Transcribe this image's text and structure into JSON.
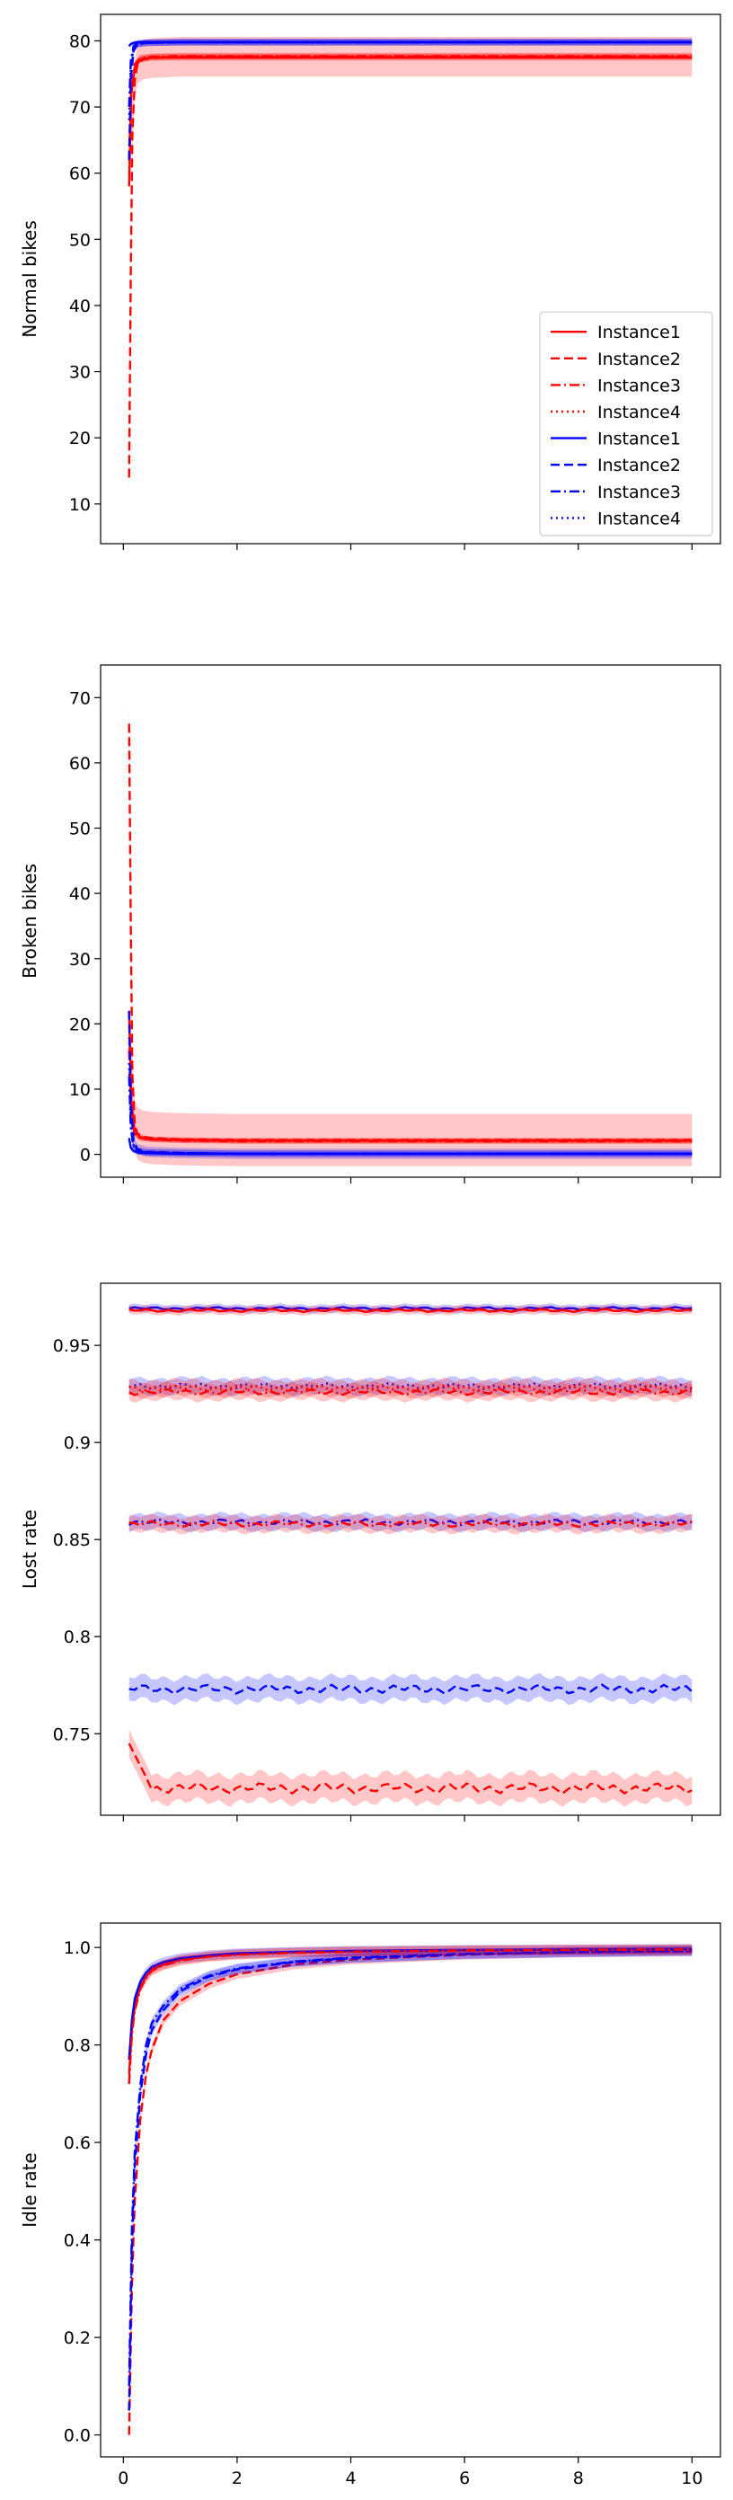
{
  "chart_data": [
    {
      "type": "line",
      "ylabel": "Normal bikes",
      "xlim": [
        -0.4,
        10.5
      ],
      "ylim": [
        4,
        84
      ],
      "yticks": [
        10,
        20,
        30,
        40,
        50,
        60,
        70,
        80
      ],
      "xticks": [
        0,
        2,
        4,
        6,
        8,
        10
      ],
      "show_xtick_labels": false,
      "legend": {
        "position": "lower-right",
        "entries": [
          {
            "label": "Instance1",
            "color": "#ff0000",
            "style": "solid"
          },
          {
            "label": "Instance2",
            "color": "#ff0000",
            "style": "dashed"
          },
          {
            "label": "Instance3",
            "color": "#ff0000",
            "style": "dashdot"
          },
          {
            "label": "Instance4",
            "color": "#ff0000",
            "style": "dotted"
          },
          {
            "label": "Instance1",
            "color": "#0000ff",
            "style": "solid"
          },
          {
            "label": "Instance2",
            "color": "#0000ff",
            "style": "dashed"
          },
          {
            "label": "Instance3",
            "color": "#0000ff",
            "style": "dashdot"
          },
          {
            "label": "Instance4",
            "color": "#0000ff",
            "style": "dotted"
          }
        ]
      },
      "series": [
        {
          "color": "#ff0000",
          "style": "dashed",
          "band": 3.0,
          "x": [
            0.1,
            0.13,
            0.16,
            0.2,
            0.25,
            0.35,
            0.5,
            1,
            2,
            4,
            6,
            8,
            10
          ],
          "y": [
            14,
            45,
            66,
            74,
            76.5,
            77.2,
            77.4,
            77.6,
            77.6,
            77.6,
            77.6,
            77.6,
            77.6
          ]
        },
        {
          "color": "#ff0000",
          "style": "solid",
          "band": 0.5,
          "x": [
            0.1,
            0.14,
            0.2,
            0.3,
            0.5,
            1,
            2,
            4,
            6,
            8,
            10
          ],
          "y": [
            58,
            72,
            76,
            77.2,
            77.5,
            77.5,
            77.5,
            77.5,
            77.5,
            77.5,
            77.5
          ]
        },
        {
          "color": "#ff0000",
          "style": "dashdot",
          "band": 0.5,
          "x": [
            0.1,
            0.14,
            0.2,
            0.3,
            0.5,
            1,
            2,
            4,
            6,
            8,
            10
          ],
          "y": [
            62,
            73,
            76.5,
            77.4,
            77.6,
            77.7,
            77.7,
            77.7,
            77.7,
            77.7,
            77.7
          ]
        },
        {
          "color": "#ff0000",
          "style": "dotted",
          "band": 0.5,
          "x": [
            0.1,
            0.14,
            0.2,
            0.3,
            0.5,
            1,
            2,
            4,
            6,
            8,
            10
          ],
          "y": [
            60,
            72,
            76.2,
            77.3,
            77.5,
            77.6,
            77.6,
            77.6,
            77.6,
            77.6,
            77.6
          ]
        },
        {
          "color": "#0000ff",
          "style": "solid",
          "band": 0.3,
          "x": [
            0.1,
            0.13,
            0.18,
            0.25,
            0.4,
            1,
            2,
            4,
            6,
            8,
            10
          ],
          "y": [
            79.2,
            79.5,
            79.7,
            79.8,
            79.8,
            79.8,
            79.8,
            79.8,
            79.8,
            79.8,
            79.8
          ]
        },
        {
          "color": "#0000ff",
          "style": "dashed",
          "band": 0.5,
          "x": [
            0.1,
            0.13,
            0.18,
            0.25,
            0.4,
            1,
            2,
            4,
            6,
            8,
            10
          ],
          "y": [
            62,
            74,
            78.5,
            79.5,
            79.7,
            79.8,
            79.8,
            79.8,
            79.8,
            79.8,
            79.8
          ]
        },
        {
          "color": "#0000ff",
          "style": "dashdot",
          "band": 0.5,
          "x": [
            0.1,
            0.13,
            0.18,
            0.25,
            0.4,
            1,
            2,
            4,
            6,
            8,
            10
          ],
          "y": [
            70,
            77,
            79.2,
            79.6,
            79.7,
            79.8,
            79.8,
            79.8,
            79.8,
            79.8,
            79.8
          ]
        },
        {
          "color": "#0000ff",
          "style": "dotted",
          "band": 0.5,
          "x": [
            0.1,
            0.13,
            0.18,
            0.25,
            0.4,
            1,
            2,
            4,
            6,
            8,
            10
          ],
          "y": [
            68,
            76,
            79,
            79.5,
            79.7,
            79.8,
            79.8,
            79.8,
            79.8,
            79.8,
            79.8
          ]
        }
      ]
    },
    {
      "type": "line",
      "ylabel": "Broken bikes",
      "xlim": [
        -0.4,
        10.5
      ],
      "ylim": [
        -3.5,
        75
      ],
      "yticks": [
        0,
        10,
        20,
        30,
        40,
        50,
        60,
        70
      ],
      "xticks": [
        0,
        2,
        4,
        6,
        8,
        10
      ],
      "show_xtick_labels": false,
      "series": [
        {
          "color": "#ff0000",
          "style": "dashed",
          "band": 4.0,
          "x": [
            0.1,
            0.13,
            0.16,
            0.2,
            0.25,
            0.35,
            0.5,
            1,
            2,
            4,
            6,
            8,
            10
          ],
          "y": [
            66,
            35,
            12,
            4.5,
            3.2,
            2.7,
            2.5,
            2.3,
            2.2,
            2.2,
            2.2,
            2.2,
            2.2
          ]
        },
        {
          "color": "#ff0000",
          "style": "solid",
          "band": 0.4,
          "x": [
            0.1,
            0.14,
            0.2,
            0.3,
            0.5,
            1,
            2,
            4,
            6,
            8,
            10
          ],
          "y": [
            22,
            8,
            3.5,
            2.6,
            2.3,
            2.2,
            2.1,
            2.1,
            2.1,
            2.1,
            2.1
          ]
        },
        {
          "color": "#ff0000",
          "style": "dashdot",
          "band": 0.4,
          "x": [
            0.1,
            0.14,
            0.2,
            0.3,
            0.5,
            1,
            2,
            4,
            6,
            8,
            10
          ],
          "y": [
            16,
            6,
            3,
            2.5,
            2.3,
            2.1,
            2.0,
            2.0,
            2.0,
            2.0,
            2.0
          ]
        },
        {
          "color": "#ff0000",
          "style": "dotted",
          "band": 0.4,
          "x": [
            0.1,
            0.14,
            0.2,
            0.3,
            0.5,
            1,
            2,
            4,
            6,
            8,
            10
          ],
          "y": [
            18,
            7,
            3.2,
            2.5,
            2.3,
            2.2,
            2.1,
            2.1,
            2.1,
            2.1,
            2.1
          ]
        },
        {
          "color": "#0000ff",
          "style": "solid",
          "band": 0.3,
          "x": [
            0.1,
            0.13,
            0.18,
            0.25,
            0.4,
            1,
            2,
            4,
            6,
            8,
            10
          ],
          "y": [
            2.5,
            1.0,
            0.5,
            0.3,
            0.2,
            0.1,
            0.1,
            0.1,
            0.1,
            0.1,
            0.1
          ]
        },
        {
          "color": "#0000ff",
          "style": "dashed",
          "band": 0.8,
          "x": [
            0.1,
            0.13,
            0.18,
            0.25,
            0.4,
            1,
            2,
            4,
            6,
            8,
            10
          ],
          "y": [
            22,
            8,
            2,
            0.8,
            0.4,
            0.2,
            0.1,
            0.1,
            0.1,
            0.1,
            0.1
          ]
        },
        {
          "color": "#0000ff",
          "style": "dashdot",
          "band": 0.5,
          "x": [
            0.1,
            0.13,
            0.18,
            0.25,
            0.4,
            1,
            2,
            4,
            6,
            8,
            10
          ],
          "y": [
            12,
            4,
            1,
            0.5,
            0.3,
            0.2,
            0.1,
            0.1,
            0.1,
            0.1,
            0.1
          ]
        },
        {
          "color": "#0000ff",
          "style": "dotted",
          "band": 0.5,
          "x": [
            0.1,
            0.13,
            0.18,
            0.25,
            0.4,
            1,
            2,
            4,
            6,
            8,
            10
          ],
          "y": [
            14,
            5,
            1.2,
            0.6,
            0.3,
            0.2,
            0.1,
            0.1,
            0.1,
            0.1,
            0.1
          ]
        }
      ]
    },
    {
      "type": "line",
      "ylabel": "Lost rate",
      "xlim": [
        -0.4,
        10.5
      ],
      "ylim": [
        0.708,
        0.982
      ],
      "yticks": [
        0.75,
        0.8,
        0.85,
        0.9,
        0.95
      ],
      "xticks": [
        0,
        2,
        4,
        6,
        8,
        10
      ],
      "show_xtick_labels": false,
      "series": [
        {
          "color": "#0000ff",
          "style": "solid",
          "level": 0.969,
          "band": 0.002
        },
        {
          "color": "#ff0000",
          "style": "solid",
          "level": 0.968,
          "band": 0.002
        },
        {
          "color": "#0000ff",
          "style": "dotted",
          "level": 0.929,
          "band": 0.004
        },
        {
          "color": "#ff0000",
          "style": "dotted",
          "level": 0.928,
          "band": 0.004
        },
        {
          "color": "#ff0000",
          "style": "dashdot",
          "level": 0.926,
          "band": 0.004
        },
        {
          "color": "#0000ff",
          "style": "dashdot",
          "level": 0.859,
          "band": 0.004
        },
        {
          "color": "#ff0000",
          "style": "dashdot",
          "level": 0.858,
          "band": 0.004
        },
        {
          "color": "#0000ff",
          "style": "dashed",
          "level": 0.773,
          "band": 0.006
        },
        {
          "color": "#ff0000",
          "style": "dashed",
          "level": 0.722,
          "band": 0.007,
          "start": 0.745
        }
      ]
    },
    {
      "type": "line",
      "ylabel": "Idle rate",
      "xlim": [
        -0.4,
        10.5
      ],
      "ylim": [
        -0.045,
        1.05
      ],
      "yticks": [
        0.0,
        0.2,
        0.4,
        0.6,
        0.8,
        1.0
      ],
      "ytick_labels": [
        "0.0",
        "0.2",
        "0.4",
        "0.6",
        "0.8",
        "1.0"
      ],
      "xticks": [
        0,
        2,
        4,
        6,
        8,
        10
      ],
      "xtick_labels": [
        "0",
        "2",
        "4",
        "6",
        "8",
        "10"
      ],
      "show_xtick_labels": true,
      "series": [
        {
          "color": "#ff0000",
          "style": "dashed",
          "band": 0.01,
          "x": [
            0.1,
            0.15,
            0.2,
            0.3,
            0.4,
            0.5,
            0.7,
            1,
            1.5,
            2,
            3,
            4,
            6,
            8,
            10
          ],
          "y": [
            0.0,
            0.3,
            0.48,
            0.65,
            0.74,
            0.79,
            0.85,
            0.89,
            0.925,
            0.945,
            0.965,
            0.975,
            0.985,
            0.99,
            0.992
          ]
        },
        {
          "color": "#0000ff",
          "style": "dashed",
          "band": 0.01,
          "x": [
            0.1,
            0.15,
            0.2,
            0.3,
            0.4,
            0.5,
            0.7,
            1,
            1.5,
            2,
            3,
            4,
            6,
            8,
            10
          ],
          "y": [
            0.05,
            0.38,
            0.55,
            0.7,
            0.78,
            0.83,
            0.87,
            0.91,
            0.94,
            0.955,
            0.97,
            0.978,
            0.986,
            0.99,
            0.993
          ]
        },
        {
          "color": "#ff0000",
          "style": "solid",
          "band": 0.01,
          "x": [
            0.1,
            0.15,
            0.2,
            0.3,
            0.4,
            0.5,
            0.7,
            1,
            1.5,
            2,
            3,
            4,
            6,
            8,
            10
          ],
          "y": [
            0.74,
            0.83,
            0.88,
            0.92,
            0.94,
            0.955,
            0.965,
            0.975,
            0.982,
            0.986,
            0.99,
            0.992,
            0.994,
            0.995,
            0.996
          ]
        },
        {
          "color": "#0000ff",
          "style": "solid",
          "band": 0.01,
          "x": [
            0.1,
            0.15,
            0.2,
            0.3,
            0.4,
            0.5,
            0.7,
            1,
            1.5,
            2,
            3,
            4,
            6,
            8,
            10
          ],
          "y": [
            0.77,
            0.85,
            0.895,
            0.93,
            0.948,
            0.96,
            0.97,
            0.978,
            0.984,
            0.988,
            0.991,
            0.993,
            0.995,
            0.996,
            0.997
          ]
        },
        {
          "color": "#0000ff",
          "style": "dashdot",
          "band": 0.01,
          "x": [
            0.1,
            0.15,
            0.2,
            0.3,
            0.4,
            0.5,
            0.7,
            1,
            1.5,
            2,
            3,
            4,
            6,
            8,
            10
          ],
          "y": [
            0.1,
            0.42,
            0.58,
            0.72,
            0.8,
            0.845,
            0.88,
            0.915,
            0.942,
            0.957,
            0.971,
            0.979,
            0.987,
            0.991,
            0.993
          ]
        },
        {
          "color": "#ff0000",
          "style": "dashdot",
          "band": 0.01,
          "x": [
            0.1,
            0.15,
            0.2,
            0.3,
            0.4,
            0.5,
            0.7,
            1,
            1.5,
            2,
            3,
            4,
            6,
            8,
            10
          ],
          "y": [
            0.72,
            0.82,
            0.87,
            0.915,
            0.937,
            0.952,
            0.963,
            0.973,
            0.981,
            0.985,
            0.989,
            0.991,
            0.994,
            0.995,
            0.996
          ]
        }
      ]
    }
  ]
}
